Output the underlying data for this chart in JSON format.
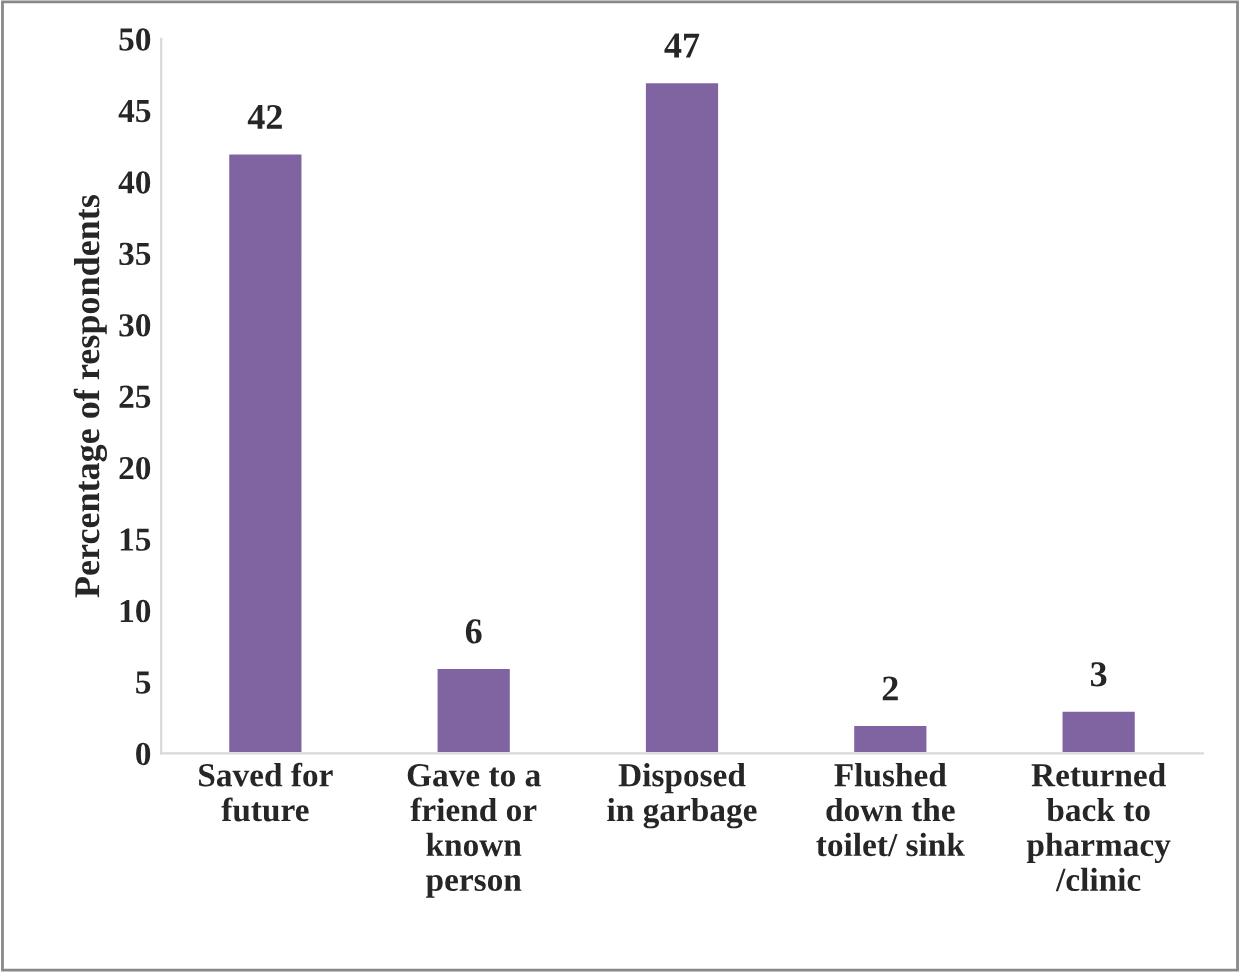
{
  "chart_data": {
    "type": "bar",
    "ylabel": "Percentage of respondents",
    "categories": [
      "Saved for\nfuture",
      "Gave to a\nfriend or\nknown\nperson",
      "Disposed\nin garbage",
      "Flushed\ndown the\ntoilet/ sink",
      "Returned\nback to\npharmacy\n/clinic"
    ],
    "values": [
      42,
      6,
      47,
      2,
      3
    ],
    "color": "#8064a2",
    "ylim": [
      0,
      50
    ],
    "yticks": [
      0,
      5,
      10,
      15,
      20,
      25,
      30,
      35,
      40,
      45,
      50
    ],
    "data_labels": true,
    "grid": false
  }
}
